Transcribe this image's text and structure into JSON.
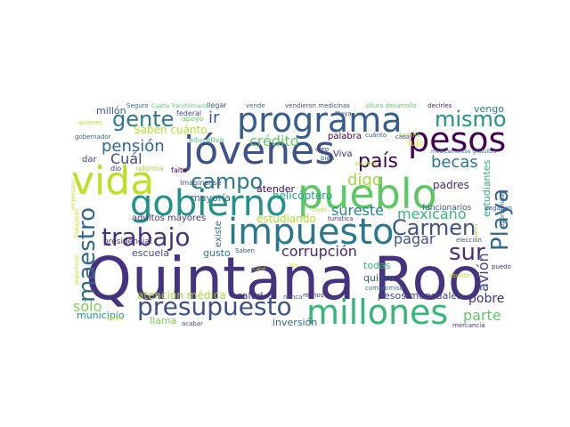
{
  "cloud": {
    "words": [
      {
        "text": "Quintana Roo",
        "color": "#46327e"
      },
      {
        "text": "pueblo",
        "color": "#5dc863"
      },
      {
        "text": "jóvenes",
        "color": "#3b528b"
      },
      {
        "text": "programa",
        "color": "#365d8d"
      },
      {
        "text": "gobierno",
        "color": "#21918c"
      },
      {
        "text": "pesos",
        "color": "#440154"
      },
      {
        "text": "vida",
        "color": "#bddf26"
      },
      {
        "text": "impuesto",
        "color": "#2a788e"
      },
      {
        "text": "millones",
        "color": "#35b779"
      },
      {
        "text": "presupuesto",
        "color": "#3b528b"
      },
      {
        "text": "gente",
        "color": "#2a788e"
      },
      {
        "text": "mismo",
        "color": "#21918c"
      },
      {
        "text": "trabajo",
        "color": "#46327e"
      },
      {
        "text": "maestro",
        "color": "#31688e"
      },
      {
        "text": "campo",
        "color": "#2a788e"
      },
      {
        "text": "Carmen",
        "color": "#3b528b"
      },
      {
        "text": "Playa",
        "color": "#31688e"
      },
      {
        "text": "sur",
        "color": "#472d7b"
      },
      {
        "text": "país",
        "color": "#440154"
      },
      {
        "text": "ir",
        "color": "#365d8d"
      },
      {
        "text": "Cuál",
        "color": "#3e4989"
      },
      {
        "text": "pensión",
        "color": "#31688e"
      },
      {
        "text": "crédito",
        "color": "#5ec962"
      },
      {
        "text": "becas",
        "color": "#2a788e"
      },
      {
        "text": "digo",
        "color": "#a0da39"
      },
      {
        "text": "sureste",
        "color": "#26828e"
      },
      {
        "text": "mexicano",
        "color": "#35b779"
      },
      {
        "text": "corrupción",
        "color": "#482878"
      },
      {
        "text": "pagar",
        "color": "#3b528b"
      },
      {
        "text": "avión",
        "color": "#3e4989"
      },
      {
        "text": "sólo",
        "color": "#7ad151"
      },
      {
        "text": "parte",
        "color": "#5ec962"
      },
      {
        "text": "pobre",
        "color": "#46327e"
      },
      {
        "text": "atención médica",
        "color": "#a5db36"
      },
      {
        "text": "Saben cuánto",
        "color": "#b5de2b"
      },
      {
        "text": "helicóptero",
        "color": "#20a486"
      },
      {
        "text": "estudiando",
        "color": "#addc30"
      },
      {
        "text": "estudiantes",
        "color": "#2ab07f"
      },
      {
        "text": "adultos mayores",
        "color": "#46327e"
      },
      {
        "text": "mayoría",
        "color": "#31688e"
      },
      {
        "text": "atender",
        "color": "#440154"
      },
      {
        "text": "escuela",
        "color": "#3e4989"
      },
      {
        "text": "gusto",
        "color": "#2a788e"
      },
      {
        "text": "existe",
        "color": "#31688e"
      },
      {
        "text": "quiera",
        "color": "#3b528b"
      },
      {
        "text": "todas",
        "color": "#35b779"
      },
      {
        "text": "pesos mensuales",
        "color": "#414487"
      },
      {
        "text": "salud",
        "color": "#443983"
      },
      {
        "text": "inversión",
        "color": "#31688e"
      },
      {
        "text": "llama",
        "color": "#7ad151"
      },
      {
        "text": "municipio",
        "color": "#21918c"
      },
      {
        "text": "millón",
        "color": "#3b528b"
      },
      {
        "text": "dar",
        "color": "#3e4989"
      },
      {
        "text": "vengo",
        "color": "#287d8e"
      },
      {
        "text": "padres",
        "color": "#482475"
      },
      {
        "text": "lujo",
        "color": "#e5e419"
      },
      {
        "text": "palabra",
        "color": "#440154"
      },
      {
        "text": "Viva",
        "color": "#482878"
      },
      {
        "text": "funcionarios",
        "color": "#3b528b"
      },
      {
        "text": "presidencial",
        "color": "#46327e"
      },
      {
        "text": "Imagínense",
        "color": "#3b528b"
      },
      {
        "text": "falta",
        "color": "#440154"
      },
      {
        "text": "reforma",
        "color": "#a0da39"
      },
      {
        "text": "dio",
        "color": "#46327e"
      },
      {
        "text": "educativa",
        "color": "#4ac16d"
      },
      {
        "text": "federal",
        "color": "#3b528b"
      },
      {
        "text": "apoyo",
        "color": "#5ec962"
      },
      {
        "text": "llegar",
        "color": "#3b528b"
      },
      {
        "text": "Seguro",
        "color": "#31688e"
      },
      {
        "text": "Cuarta Transformación",
        "color": "#4ac16d"
      },
      {
        "text": "vende",
        "color": "#31688e"
      },
      {
        "text": "vendieron medicinas",
        "color": "#3b528b"
      },
      {
        "text": "altura desarrollo",
        "color": "#5ec962"
      },
      {
        "text": "decirles",
        "color": "#482878"
      },
      {
        "text": "Maya",
        "color": "#3b528b"
      },
      {
        "text": "cuánto",
        "color": "#365d8d"
      },
      {
        "text": "medicamentos gratuitos",
        "color": "#31688e"
      },
      {
        "text": "alcance",
        "color": "#b5de2b"
      },
      {
        "text": "familia",
        "color": "#a0da39"
      },
      {
        "text": "casa",
        "color": "#3e4989"
      },
      {
        "text": "creo",
        "color": "#46327e"
      },
      {
        "text": "bien",
        "color": "#3b528b"
      },
      {
        "text": "nivel",
        "color": "#bddf26"
      },
      {
        "text": "turística",
        "color": "#46327e"
      },
      {
        "text": "asunto",
        "color": "#c8e020"
      },
      {
        "text": "elección",
        "color": "#3b528b"
      },
      {
        "text": "compromiso",
        "color": "#2a788e"
      },
      {
        "text": "puedo",
        "color": "#46327e"
      },
      {
        "text": "nunca",
        "color": "#31688e"
      },
      {
        "text": "menos",
        "color": "#482878"
      },
      {
        "text": "acabar",
        "color": "#3b528b"
      },
      {
        "text": "Saben",
        "color": "#3b528b"
      },
      {
        "text": "cabo",
        "color": "#b5de2b"
      },
      {
        "text": "aviones",
        "color": "#b5de2b"
      },
      {
        "text": "gobernador",
        "color": "#31688e"
      },
      {
        "text": "Trabajando",
        "color": "#c8e020"
      },
      {
        "text": "importante",
        "color": "#c8e020"
      },
      {
        "text": "apoyo",
        "color": "#c8e020"
      },
      {
        "text": "mercancía",
        "color": "#46327e"
      },
      {
        "text": "oportunidad",
        "color": "#31688e"
      },
      {
        "text": "pagaban",
        "color": "#3b528b"
      },
      {
        "text": "nueva",
        "color": "#a0da39"
      },
      {
        "text": "empresario",
        "color": "#c8e020"
      },
      {
        "text": "voy",
        "color": "#c8e020"
      }
    ]
  }
}
